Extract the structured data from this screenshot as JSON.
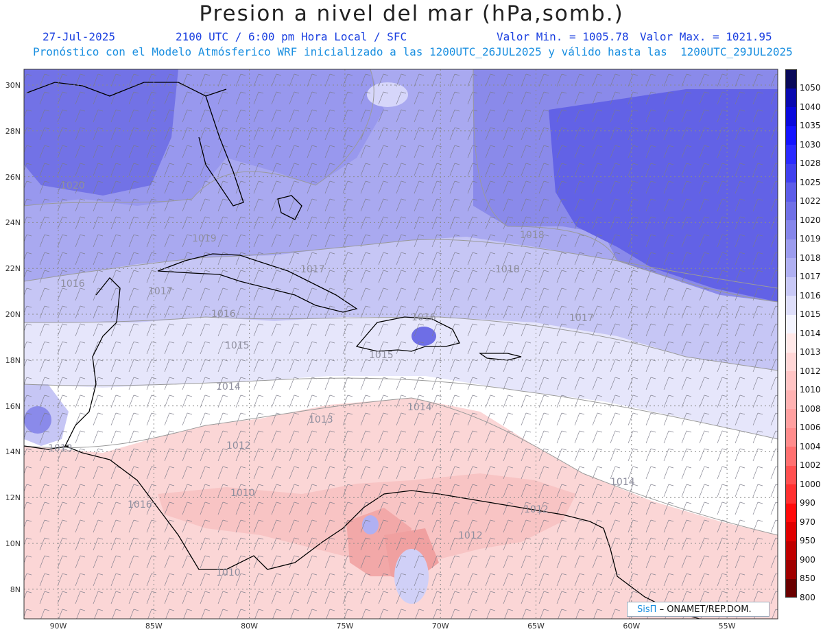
{
  "header": {
    "title": "Presion a nivel del mar (hPa,somb.)",
    "date": "27-Jul-2025",
    "time": "2100 UTC / 6:00 pm Hora Local / SFC",
    "min_label": "Valor Min. = 1005.78",
    "max_label": "Valor Max. = 1021.95",
    "forecast": "Pronóstico con el Modelo Atmósferico WRF inicializado a las 1200UTC_26JUL2025 y válido hasta las  1200UTC_29JUL2025"
  },
  "axes": {
    "lat_labels": [
      "30N",
      "28N",
      "26N",
      "24N",
      "22N",
      "20N",
      "18N",
      "16N",
      "14N",
      "12N",
      "10N",
      "8N"
    ],
    "lon_labels": [
      "90W",
      "85W",
      "80W",
      "75W",
      "70W",
      "65W",
      "60W",
      "55W"
    ]
  },
  "contour_labels": [
    "1020",
    "1019",
    "1018",
    "1018",
    "1017",
    "1017",
    "1016",
    "1016",
    "1016",
    "1015",
    "1015",
    "1014",
    "1014",
    "1014",
    "1013",
    "1013",
    "1012",
    "1012",
    "1012",
    "1010",
    "1010",
    "1016",
    "1017"
  ],
  "colorbar": {
    "levels": [
      "1050",
      "1040",
      "1035",
      "1030",
      "1028",
      "1025",
      "1022",
      "1020",
      "1019",
      "1018",
      "1017",
      "1016",
      "1015",
      "1014",
      "1013",
      "1012",
      "1010",
      "1008",
      "1006",
      "1004",
      "1002",
      "1000",
      "990",
      "970",
      "950",
      "900",
      "850",
      "800"
    ],
    "colors": [
      "#0a0a5a",
      "#0a0ab0",
      "#0a0adc",
      "#1414ff",
      "#2a2aff",
      "#4040ee",
      "#5c5ce8",
      "#7070e6",
      "#8686ea",
      "#9c9cee",
      "#b0b0f2",
      "#c8c8f6",
      "#dedefa",
      "#f4f4fe",
      "#ffe8e8",
      "#ffd6d6",
      "#ffc4c4",
      "#ffb2b2",
      "#ffa0a0",
      "#ff8c8c",
      "#ff7070",
      "#ff5050",
      "#ff3030",
      "#ff0a0a",
      "#e00000",
      "#c00000",
      "#a00000",
      "#6a0000"
    ]
  },
  "credit": {
    "brand": "SisΠ",
    "text": "– ONAMET/REP.DOM."
  }
}
